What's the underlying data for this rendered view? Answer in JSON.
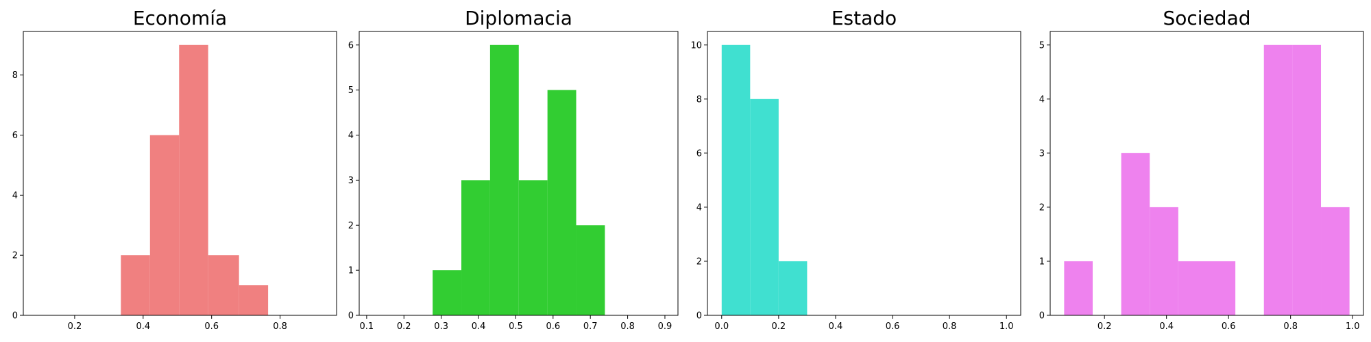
{
  "chart_data": [
    {
      "type": "bar",
      "title": "Economía",
      "color": "#f08080",
      "xlim": [
        0.05,
        0.965
      ],
      "ylim": [
        0,
        9.45
      ],
      "xticks": [
        "0.2",
        "0.4",
        "0.6",
        "0.8"
      ],
      "yticks": [
        "0",
        "2",
        "4",
        "6",
        "8"
      ],
      "bins": [
        {
          "x0": 0.335,
          "x1": 0.42,
          "count": 2
        },
        {
          "x0": 0.42,
          "x1": 0.505,
          "count": 6
        },
        {
          "x0": 0.505,
          "x1": 0.59,
          "count": 9
        },
        {
          "x0": 0.59,
          "x1": 0.68,
          "count": 2
        },
        {
          "x0": 0.68,
          "x1": 0.765,
          "count": 1
        }
      ]
    },
    {
      "type": "bar",
      "title": "Diplomacia",
      "color": "#32cd32",
      "xlim": [
        0.08,
        0.935
      ],
      "ylim": [
        0,
        6.3
      ],
      "xticks": [
        "0.1",
        "0.2",
        "0.3",
        "0.4",
        "0.5",
        "0.6",
        "0.7",
        "0.8",
        "0.9"
      ],
      "yticks": [
        "0",
        "1",
        "2",
        "3",
        "4",
        "5",
        "6"
      ],
      "bins": [
        {
          "x0": 0.277,
          "x1": 0.354,
          "count": 1
        },
        {
          "x0": 0.354,
          "x1": 0.431,
          "count": 3
        },
        {
          "x0": 0.431,
          "x1": 0.508,
          "count": 6
        },
        {
          "x0": 0.508,
          "x1": 0.585,
          "count": 3
        },
        {
          "x0": 0.585,
          "x1": 0.662,
          "count": 5
        },
        {
          "x0": 0.662,
          "x1": 0.739,
          "count": 2
        }
      ]
    },
    {
      "type": "bar",
      "title": "Estado",
      "color": "#40e0d0",
      "xlim": [
        -0.05,
        1.05
      ],
      "ylim": [
        0,
        10.5
      ],
      "xticks": [
        "0.0",
        "0.2",
        "0.4",
        "0.6",
        "0.8",
        "1.0"
      ],
      "yticks": [
        "0",
        "2",
        "4",
        "6",
        "8",
        "10"
      ],
      "bins": [
        {
          "x0": 0.0,
          "x1": 0.1,
          "count": 10
        },
        {
          "x0": 0.1,
          "x1": 0.2,
          "count": 8
        },
        {
          "x0": 0.2,
          "x1": 0.3,
          "count": 2
        }
      ]
    },
    {
      "type": "bar",
      "title": "Sociedad",
      "color": "#ee82ee",
      "xlim": [
        0.025,
        1.035
      ],
      "ylim": [
        0,
        5.25
      ],
      "xticks": [
        "0.2",
        "0.4",
        "0.6",
        "0.8",
        "1.0"
      ],
      "yticks": [
        "0",
        "1",
        "2",
        "3",
        "4",
        "5"
      ],
      "bins": [
        {
          "x0": 0.07,
          "x1": 0.162,
          "count": 1
        },
        {
          "x0": 0.162,
          "x1": 0.254,
          "count": 0
        },
        {
          "x0": 0.254,
          "x1": 0.346,
          "count": 3
        },
        {
          "x0": 0.346,
          "x1": 0.438,
          "count": 2
        },
        {
          "x0": 0.438,
          "x1": 0.53,
          "count": 1
        },
        {
          "x0": 0.53,
          "x1": 0.622,
          "count": 1
        },
        {
          "x0": 0.622,
          "x1": 0.714,
          "count": 0
        },
        {
          "x0": 0.714,
          "x1": 0.806,
          "count": 5
        },
        {
          "x0": 0.806,
          "x1": 0.898,
          "count": 5
        },
        {
          "x0": 0.898,
          "x1": 0.99,
          "count": 2
        }
      ]
    }
  ]
}
